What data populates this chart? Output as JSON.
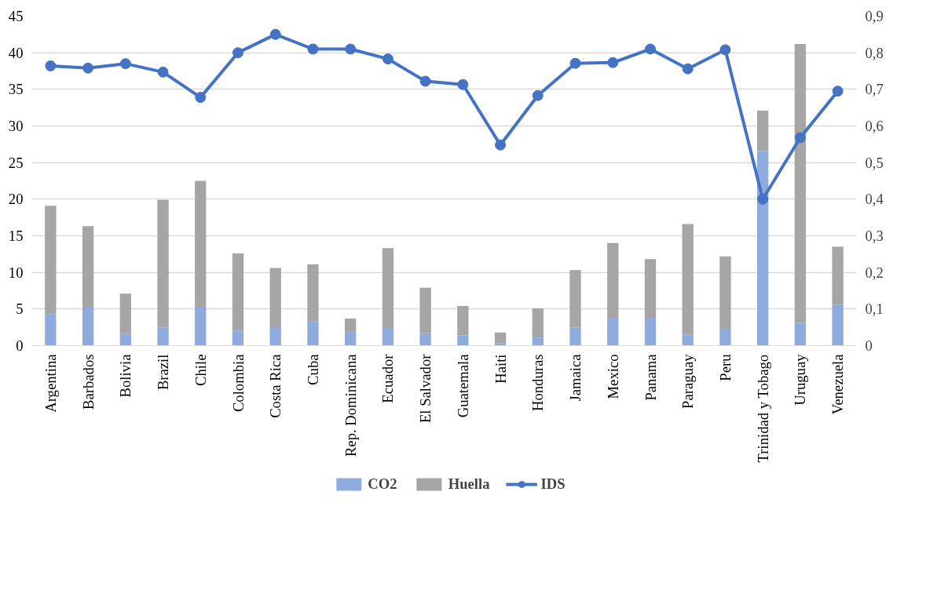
{
  "chart_data": {
    "type": "bar",
    "stacked": true,
    "categories": [
      "Argentina",
      "Barbados",
      "Bolivia",
      "Brazil",
      "Chile",
      "Colombia",
      "Costa Rica",
      "Cuba",
      "Rep. Dominicana",
      "Ecuador",
      "El Salvador",
      "Guatemala",
      "Haiti",
      "Honduras",
      "Jamaica",
      "Mexico",
      "Panama",
      "Paraguay",
      "Peru",
      "Trinidad y Tobago",
      "Uruguay",
      "Venezuela"
    ],
    "series": [
      {
        "name": "CO2",
        "color": "#8faadc",
        "values": [
          4.3,
          5.2,
          1.7,
          2.5,
          5.3,
          2.0,
          2.4,
          3.3,
          1.8,
          2.4,
          1.7,
          1.4,
          0.3,
          1.1,
          2.5,
          3.8,
          3.8,
          1.5,
          2.3,
          26.6,
          3.1,
          5.6
        ]
      },
      {
        "name": "Huella",
        "color": "#a5a5a5",
        "values": [
          14.8,
          11.1,
          5.4,
          17.4,
          17.2,
          10.6,
          8.2,
          7.8,
          1.9,
          10.9,
          6.2,
          4.0,
          1.5,
          4.0,
          7.8,
          10.2,
          8.0,
          15.1,
          9.9,
          5.5,
          38.1,
          7.9
        ]
      },
      {
        "name": "IDS",
        "type": "line",
        "axis": "y2",
        "marker": "circle",
        "color": "#4472c4",
        "values": [
          0.764,
          0.758,
          0.77,
          0.747,
          0.678,
          0.8,
          0.85,
          0.81,
          0.81,
          0.783,
          0.722,
          0.713,
          0.548,
          0.683,
          0.771,
          0.773,
          0.81,
          0.756,
          0.808,
          0.4,
          0.568,
          0.695
        ]
      }
    ],
    "ylim": [
      0,
      45
    ],
    "yticks": [
      0,
      5,
      10,
      15,
      20,
      25,
      30,
      35,
      40,
      45
    ],
    "y2lim": [
      0,
      0.9
    ],
    "y2ticks": [
      {
        "value": 0,
        "label": "0"
      },
      {
        "value": 0.1,
        "label": "0,1"
      },
      {
        "value": 0.2,
        "label": "0,2"
      },
      {
        "value": 0.3,
        "label": "0,3"
      },
      {
        "value": 0.4,
        "label": "0,4"
      },
      {
        "value": 0.5,
        "label": "0,5"
      },
      {
        "value": 0.6,
        "label": "0,6"
      },
      {
        "value": 0.7,
        "label": "0,7"
      },
      {
        "value": 0.8,
        "label": "0,8"
      },
      {
        "value": 0.9,
        "label": "0,9"
      }
    ],
    "grid": "y",
    "legend": "bottom"
  }
}
